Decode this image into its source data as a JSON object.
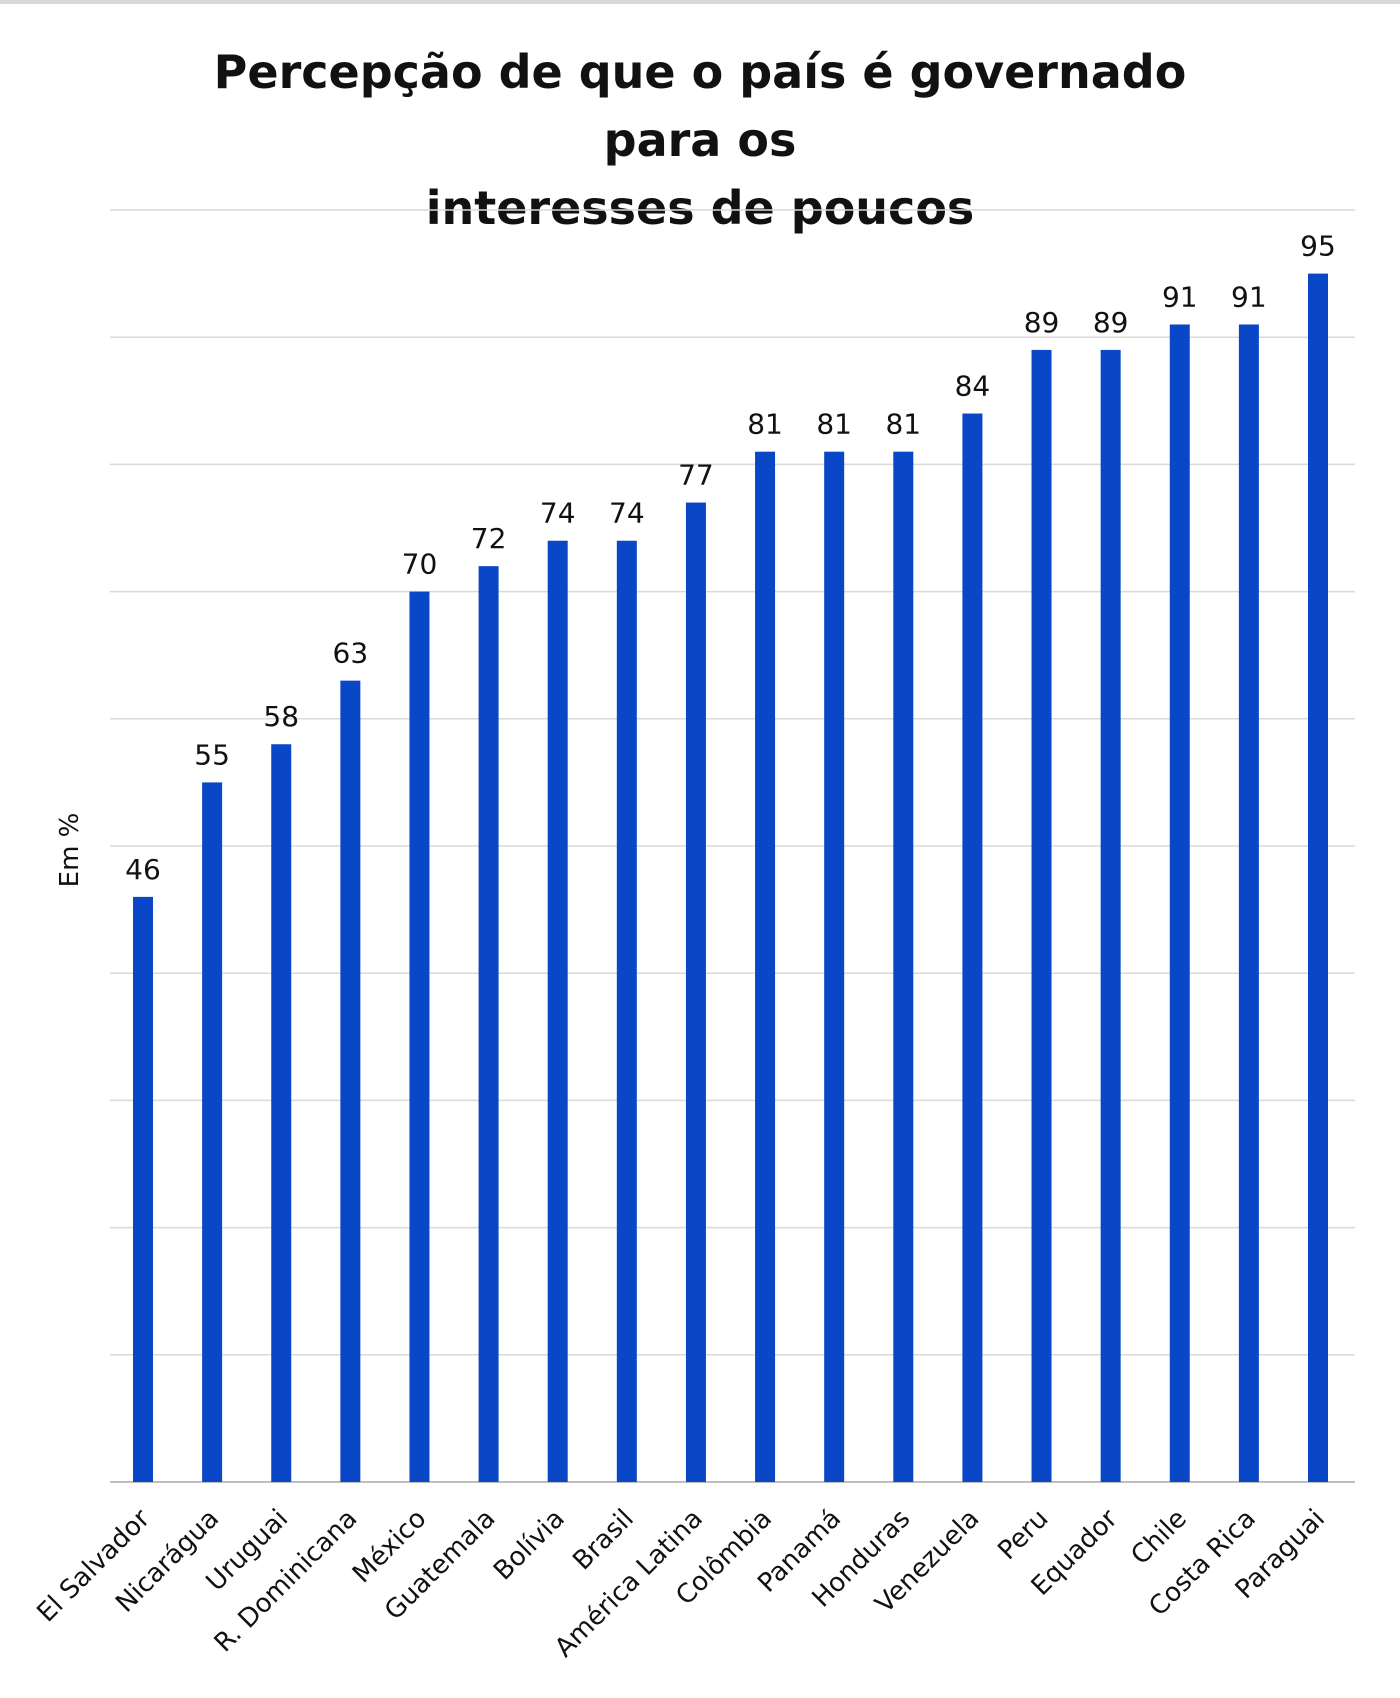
{
  "chart_data": {
    "type": "bar",
    "title_line1": "Percepção de que o país é governado para os",
    "title_line2": "interesses de poucos",
    "xlabel": "",
    "ylabel": "Em %",
    "ylim": [
      0,
      100
    ],
    "grid": true,
    "bar_color": "#0a47c7",
    "categories": [
      "El Salvador",
      "Nicarágua",
      "Uruguai",
      "R. Dominicana",
      "México",
      "Guatemala",
      "Bolívia",
      "Brasil",
      "América Latina",
      "Colômbia",
      "Panamá",
      "Honduras",
      "Venezuela",
      "Peru",
      "Equador",
      "Chile",
      "Costa Rica",
      "Paraguai"
    ],
    "values": [
      46,
      55,
      58,
      63,
      70,
      72,
      74,
      74,
      77,
      81,
      81,
      81,
      84,
      89,
      89,
      91,
      91,
      95
    ]
  }
}
